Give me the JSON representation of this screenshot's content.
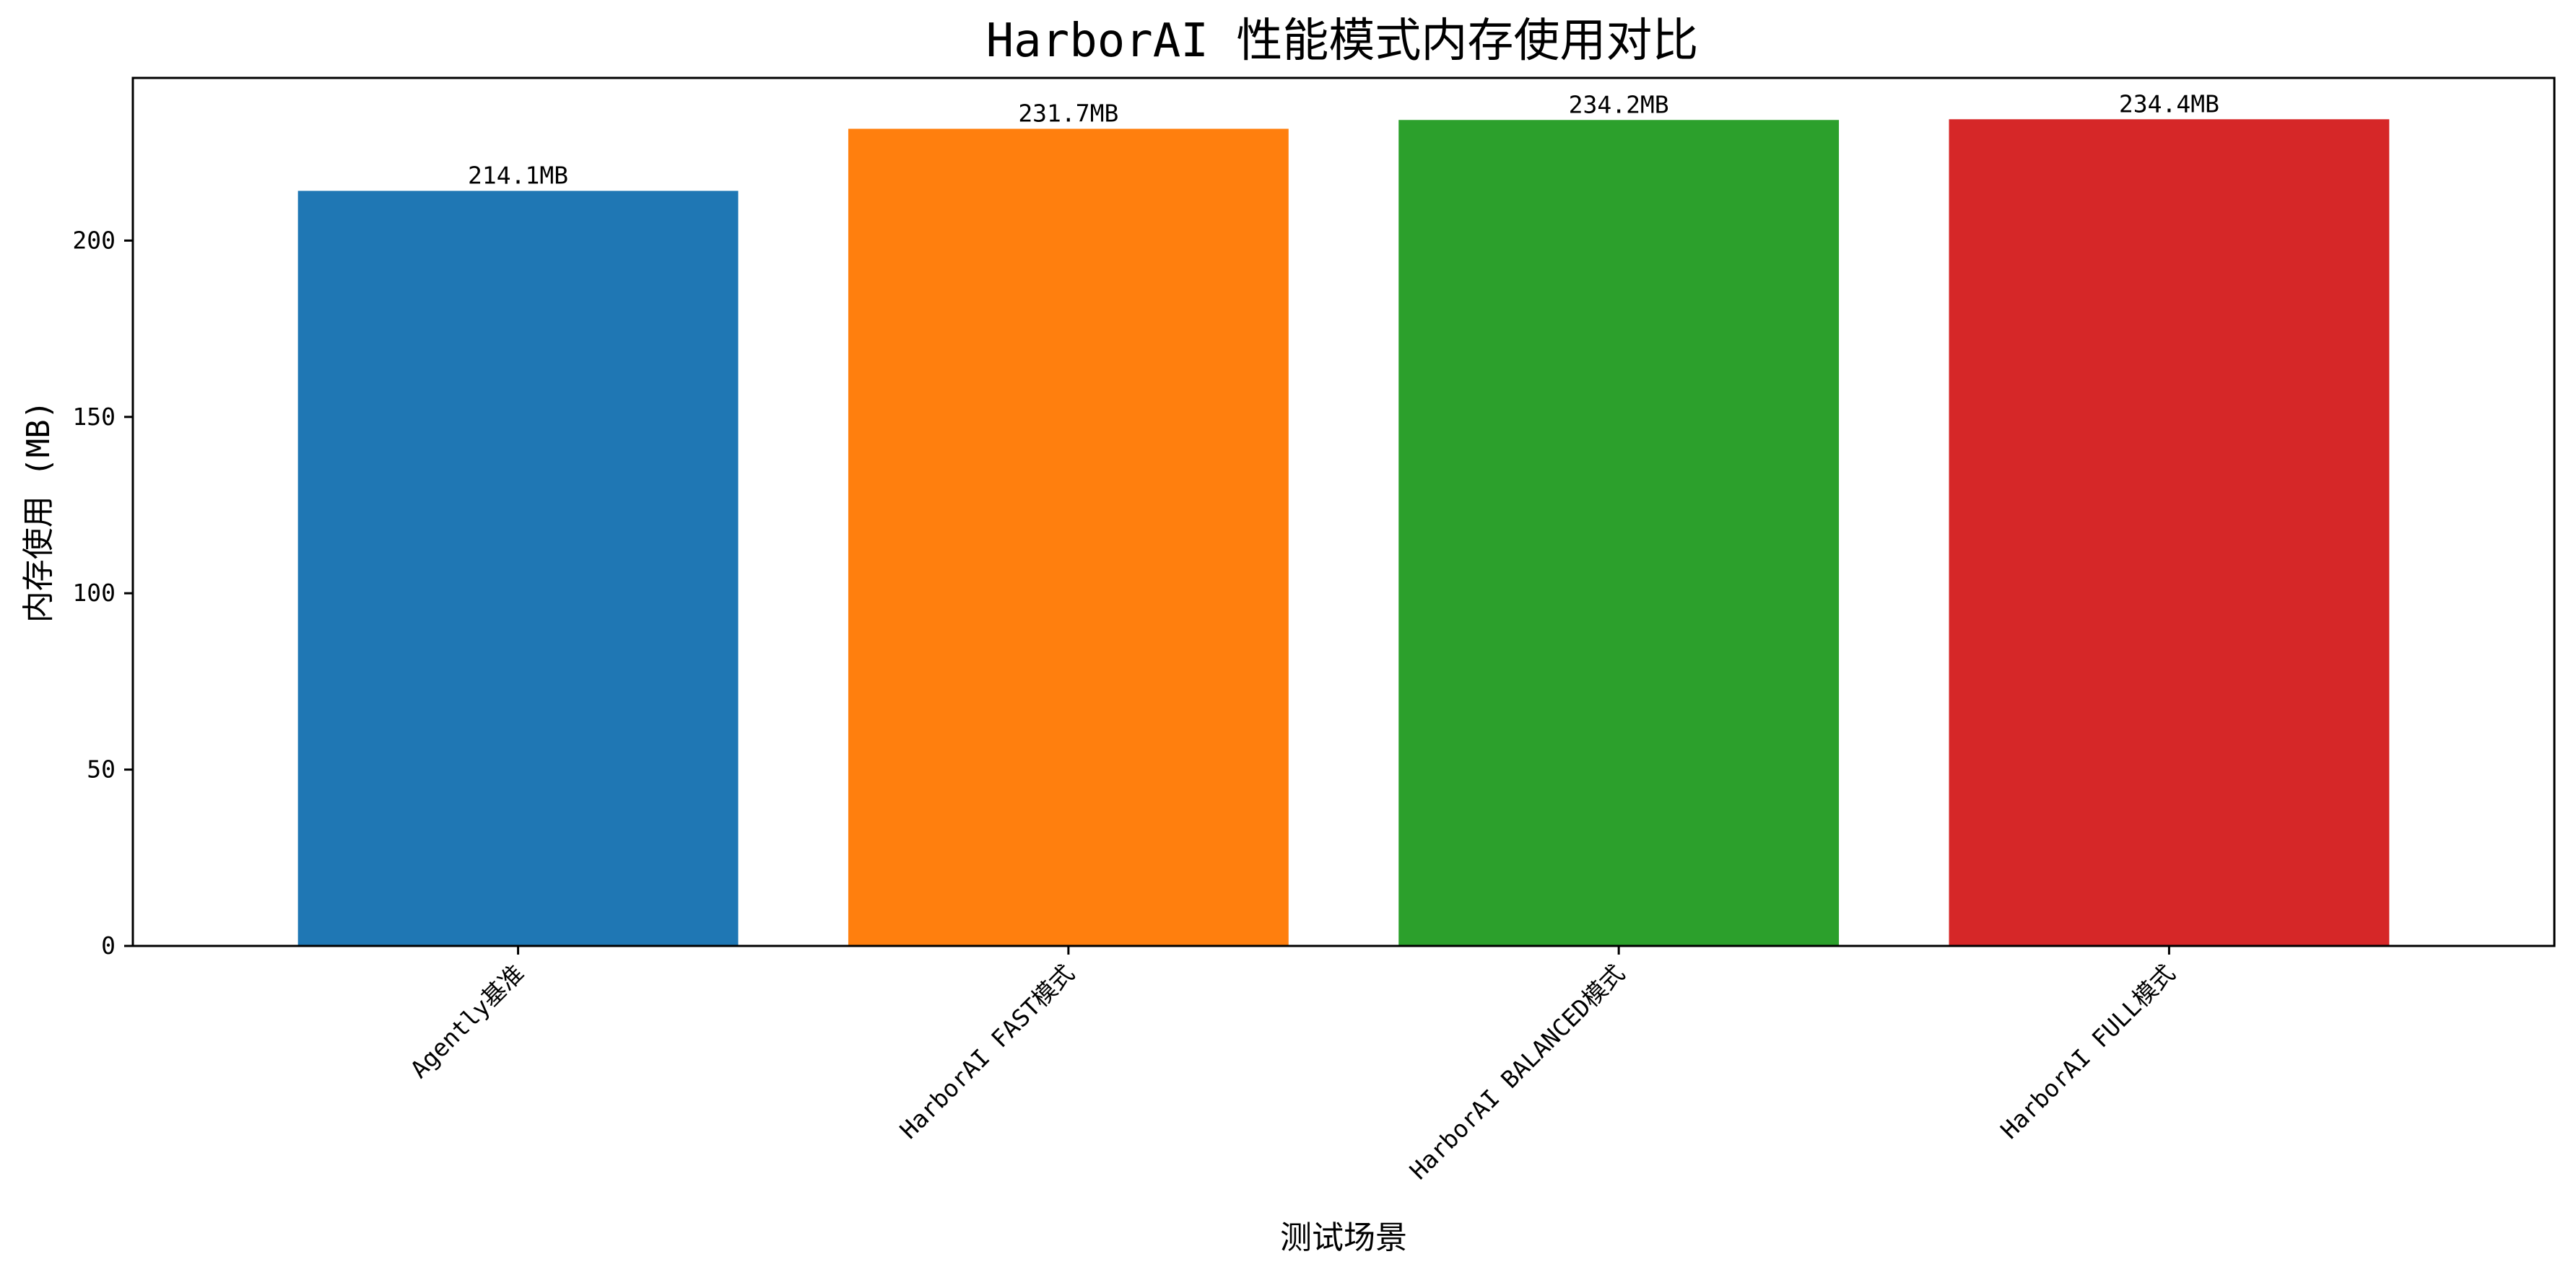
{
  "chart_data": {
    "type": "bar",
    "title": "HarborAI 性能模式内存使用对比",
    "xlabel": "测试场景",
    "ylabel": "内存使用 (MB)",
    "categories": [
      "Agently基准",
      "HarborAI FAST模式",
      "HarborAI BALANCED模式",
      "HarborAI FULL模式"
    ],
    "values": [
      214.1,
      231.7,
      234.2,
      234.4
    ],
    "value_labels": [
      "214.1MB",
      "231.7MB",
      "234.2MB",
      "234.4MB"
    ],
    "colors": [
      "#1f77b4",
      "#ff7f0e",
      "#2ca02c",
      "#d62728"
    ],
    "yticks": [
      0,
      50,
      100,
      150,
      200
    ],
    "ylim": [
      0,
      246.12
    ],
    "grid": false,
    "legend": "none"
  }
}
